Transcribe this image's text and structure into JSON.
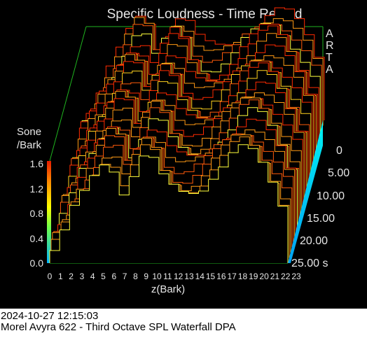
{
  "title": "Specific Loudness - Time Record",
  "brand_letters": [
    "A",
    "R",
    "T",
    "A"
  ],
  "y_axis": {
    "label_line1": "Sone",
    "label_line2": "/Bark",
    "ticks": [
      "0.0",
      "0.4",
      "0.8",
      "1.2",
      "1.6"
    ]
  },
  "x_axis": {
    "label": "z(Bark)",
    "ticks": [
      "0",
      "1",
      "2",
      "3",
      "4",
      "5",
      "6",
      "7",
      "8",
      "9",
      "10",
      "11",
      "12",
      "13",
      "14",
      "15",
      "16",
      "17",
      "18",
      "19",
      "20",
      "21",
      "22",
      "23"
    ]
  },
  "time_axis": {
    "ticks": [
      "0",
      "5.00",
      "10.00",
      "15.00",
      "20.00",
      "25.00 s"
    ]
  },
  "footer": {
    "datetime": "2024-10-27  12:15:03",
    "description": "Morel Avyra 622 - Third Octave SPL Waterfall     DPA"
  },
  "colors": {
    "background": "#000000",
    "frame": "#1fb41f",
    "text": "#e6e6e6",
    "low": "#1eb4ff",
    "mid": "#ffff00",
    "high": "#ff2a00"
  }
}
